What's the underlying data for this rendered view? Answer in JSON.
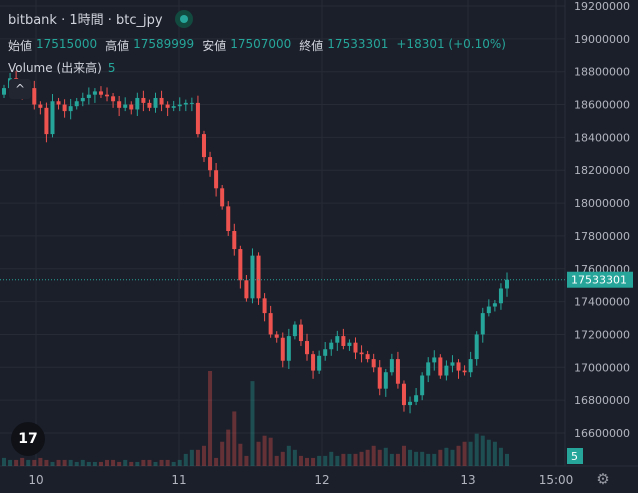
{
  "header": {
    "title": "bitbank · 1時間 · btc_jpy"
  },
  "ohlc": {
    "open_label": "始値",
    "open_value": "17515000",
    "high_label": "高値",
    "high_value": "17589999",
    "low_label": "安値",
    "low_value": "17507000",
    "close_label": "終値",
    "close_value": "17533301",
    "change": "+18301 (+0.10%)"
  },
  "volume": {
    "label": "Volume (出来高)",
    "value": "5"
  },
  "icons": {
    "collapse": "chevron-up-icon",
    "logo": "tradingview-logo-icon",
    "settings": "gear-icon"
  },
  "logo_text": "17",
  "settings_glyph": "⚙",
  "collapse_glyph": "^",
  "colors": {
    "up": "#26a69a",
    "down": "#ef5350",
    "bg": "#1b1f2a",
    "grid": "#262b36",
    "label_bg": "#26a69a"
  },
  "chart_data": {
    "type": "candlestick",
    "y_ticks": [
      "19200000",
      "19000000",
      "18800000",
      "18600000",
      "18400000",
      "18200000",
      "18000000",
      "17800000",
      "17600000",
      "17400000",
      "17200000",
      "17000000",
      "16800000",
      "16600000"
    ],
    "ylim": [
      16500000,
      19200000
    ],
    "x_ticks": [
      "10",
      "11",
      "12",
      "13",
      "15:00"
    ],
    "last_price_label": "17533301",
    "last_price": 17533301,
    "volume_label": "5",
    "series_close": [
      18700000,
      18760000,
      18730000,
      18680000,
      18700000,
      18600000,
      18580000,
      18420000,
      18620000,
      18600000,
      18560000,
      18590000,
      18620000,
      18640000,
      18660000,
      18680000,
      18660000,
      18650000,
      18620000,
      18580000,
      18600000,
      18570000,
      18640000,
      18610000,
      18580000,
      18640000,
      18600000,
      18580000,
      18590000,
      18600000,
      18610000,
      18610000,
      18420000,
      18280000,
      18200000,
      18090000,
      17980000,
      17830000,
      17720000,
      17530000,
      17420000,
      17680000,
      17420000,
      17330000,
      17200000,
      17180000,
      17040000,
      17190000,
      17260000,
      17160000,
      17080000,
      16980000,
      17070000,
      17110000,
      17150000,
      17190000,
      17130000,
      17150000,
      17090000,
      17080000,
      17050000,
      17000000,
      16870000,
      16970000,
      17050000,
      16900000,
      16770000,
      16790000,
      16830000,
      16950000,
      17030000,
      17060000,
      16950000,
      17010000,
      17030000,
      16980000,
      16970000,
      17050000,
      17200000,
      17330000,
      17370000,
      17390000,
      17480000,
      17533301
    ],
    "volumes": [
      0.4,
      0.3,
      0.3,
      0.4,
      0.3,
      0.3,
      0.4,
      0.3,
      0.2,
      0.3,
      0.3,
      0.3,
      0.2,
      0.3,
      0.2,
      0.2,
      0.2,
      0.3,
      0.3,
      0.2,
      0.3,
      0.2,
      0.2,
      0.3,
      0.3,
      0.2,
      0.3,
      0.3,
      0.2,
      0.3,
      0.6,
      0.8,
      0.8,
      1.0,
      4.7,
      0.4,
      1.2,
      1.8,
      2.7,
      1.1,
      0.5,
      4.2,
      1.2,
      1.5,
      1.4,
      0.5,
      0.7,
      1.0,
      0.8,
      0.5,
      0.4,
      0.4,
      0.5,
      0.5,
      0.7,
      0.5,
      0.6,
      0.6,
      0.6,
      0.7,
      0.8,
      1.0,
      0.8,
      0.9,
      0.6,
      0.6,
      1.0,
      0.8,
      0.7,
      0.7,
      0.6,
      0.6,
      0.8,
      0.9,
      0.8,
      1.0,
      1.2,
      1.2,
      1.6,
      1.5,
      1.3,
      1.2,
      0.9,
      0.6
    ]
  }
}
